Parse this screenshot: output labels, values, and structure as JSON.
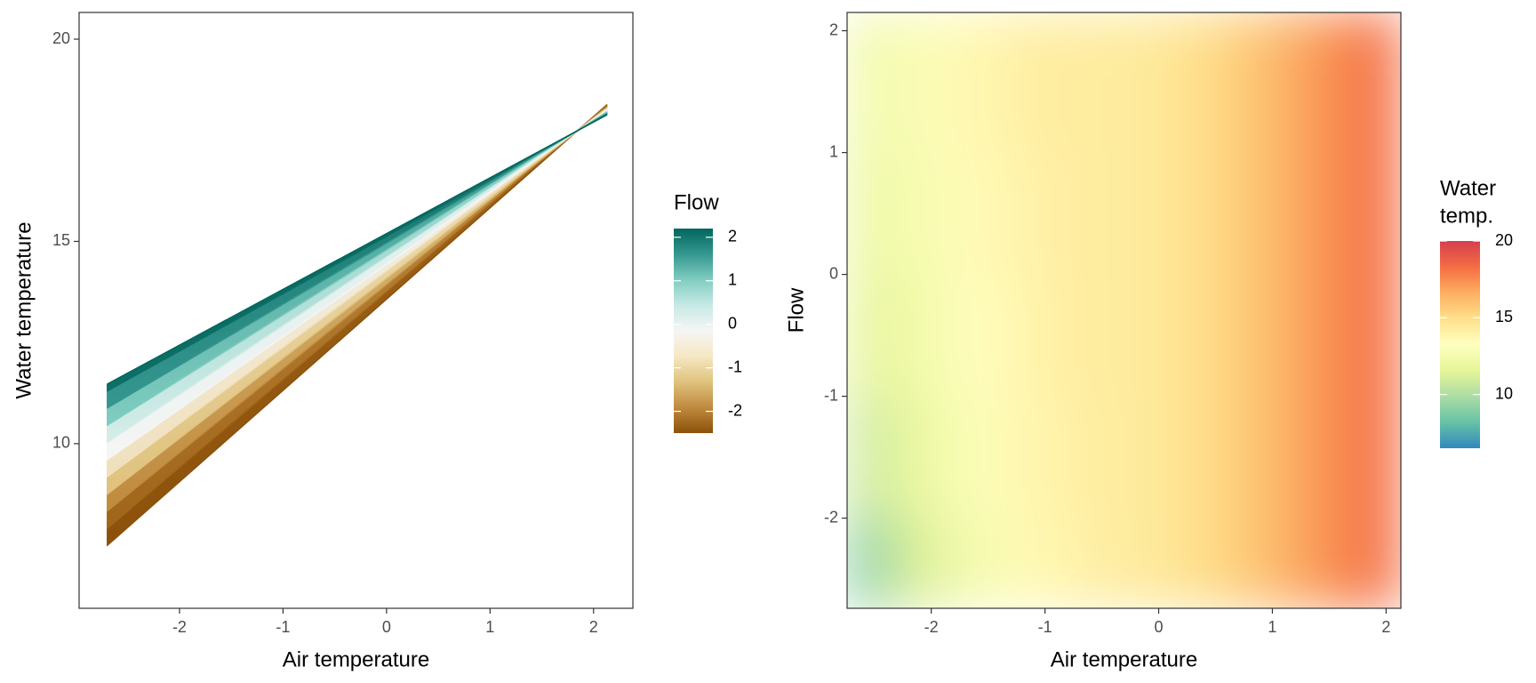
{
  "chart_data": [
    {
      "type": "line",
      "x_label": "Air temperature",
      "y_label": "Water temperature",
      "x": [
        -2.7,
        2.13
      ],
      "series": [
        {
          "color": "#8c510a",
          "values": [
            7.48,
            18.38
          ]
        },
        {
          "color": "#a0651a",
          "values": [
            7.9,
            18.36
          ]
        },
        {
          "color": "#bf8a3e",
          "values": [
            8.33,
            18.33
          ]
        },
        {
          "color": "#dfc27d",
          "values": [
            8.75,
            18.3
          ]
        },
        {
          "color": "#f0e0bc",
          "values": [
            9.18,
            18.28
          ]
        },
        {
          "color": "#f5f5f5",
          "values": [
            9.6,
            18.25
          ]
        },
        {
          "color": "#d5ede9",
          "values": [
            10.03,
            18.22
          ]
        },
        {
          "color": "#80cdc1",
          "values": [
            10.45,
            18.2
          ]
        },
        {
          "color": "#35978f",
          "values": [
            10.88,
            18.17
          ]
        },
        {
          "color": "#0d6f66",
          "values": [
            11.3,
            18.14
          ]
        },
        {
          "color": "#01665e",
          "values": [
            11.47,
            18.13
          ]
        }
      ],
      "xlim": [
        -2.97,
        2.38
      ],
      "ylim": [
        5.93,
        20.66
      ],
      "xticks": [
        -2,
        -1,
        0,
        1,
        2
      ],
      "yticks": [
        10,
        15,
        20
      ],
      "colorbar": {
        "title": "Flow",
        "lim": [
          -2.5,
          2.2
        ],
        "ticks": [
          -2,
          -1,
          0,
          1,
          2
        ],
        "colors": [
          "#8c510a",
          "#bf8a3e",
          "#dfc27d",
          "#f6e8c3",
          "#f5f5f5",
          "#c7eae5",
          "#80cdc1",
          "#35978f",
          "#01665e"
        ]
      }
    },
    {
      "type": "heatmap",
      "x_label": "Air temperature",
      "y_label": "Flow",
      "x": [
        -2.6,
        -2.1,
        -1.6,
        -1.1,
        -0.6,
        -0.1,
        0.4,
        0.9,
        1.4,
        1.9
      ],
      "y": [
        -2.5,
        -1.5,
        -0.5,
        0.5,
        1.5
      ],
      "z": [
        [
          9.0,
          11.3,
          12.6,
          13.6,
          14.1,
          14.4,
          15.0,
          16.0,
          17.2,
          18.3
        ],
        [
          10.8,
          12.0,
          13.0,
          13.8,
          14.2,
          14.4,
          15.0,
          16.0,
          17.2,
          18.3
        ],
        [
          11.6,
          12.4,
          13.3,
          13.9,
          14.3,
          14.4,
          15.0,
          16.0,
          17.2,
          18.3
        ],
        [
          12.0,
          12.7,
          13.5,
          14.0,
          14.3,
          14.4,
          15.0,
          16.0,
          17.2,
          18.3
        ],
        [
          12.3,
          12.9,
          13.7,
          14.2,
          14.3,
          14.4,
          15.0,
          16.0,
          17.2,
          18.3
        ]
      ],
      "xlim": [
        -2.74,
        2.13
      ],
      "ylim": [
        -2.74,
        2.15
      ],
      "xticks": [
        -2,
        -1,
        0,
        1,
        2
      ],
      "yticks": [
        -2,
        -1,
        0,
        1,
        2
      ],
      "colorbar": {
        "title": [
          "Water",
          "temp."
        ],
        "lim": [
          6.5,
          20
        ],
        "ticks": [
          10,
          15,
          20
        ],
        "colors": [
          "#3288bd",
          "#66c2a5",
          "#abdda4",
          "#e6f598",
          "#ffffbf",
          "#fee08b",
          "#fdae61",
          "#f46d43",
          "#d53e4f"
        ]
      }
    }
  ]
}
